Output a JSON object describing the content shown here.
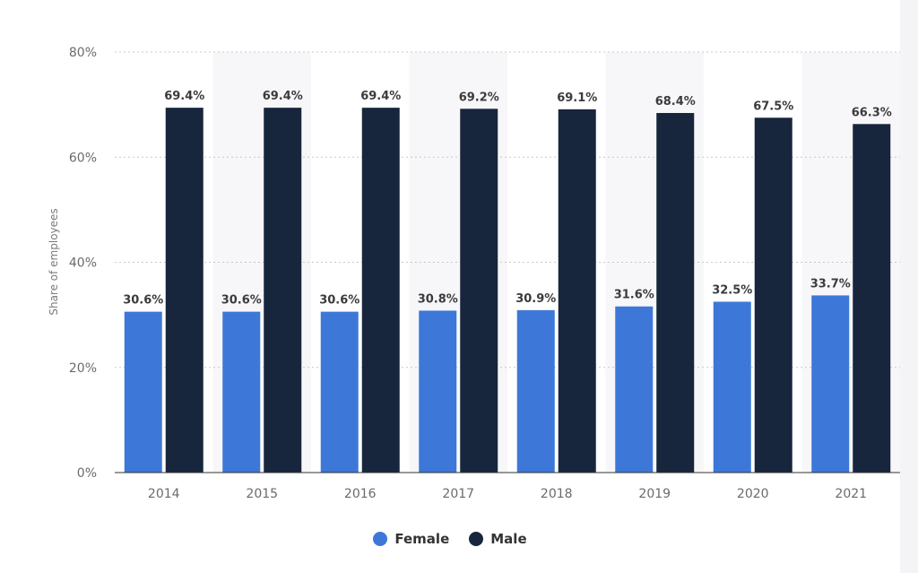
{
  "chart_data": {
    "type": "bar",
    "categories": [
      "2014",
      "2015",
      "2016",
      "2017",
      "2018",
      "2019",
      "2020",
      "2021"
    ],
    "series": [
      {
        "name": "Female",
        "color": "#3d78d8",
        "values": [
          30.6,
          30.6,
          30.6,
          30.8,
          30.9,
          31.6,
          32.5,
          33.7
        ],
        "labels": [
          "30.6%",
          "30.6%",
          "30.6%",
          "30.8%",
          "30.9%",
          "31.6%",
          "32.5%",
          "33.7%"
        ]
      },
      {
        "name": "Male",
        "color": "#17263c",
        "values": [
          69.4,
          69.4,
          69.4,
          69.2,
          69.1,
          68.4,
          67.5,
          66.3
        ],
        "labels": [
          "69.4%",
          "69.4%",
          "69.4%",
          "69.2%",
          "69.1%",
          "68.4%",
          "67.5%",
          "66.3%"
        ]
      }
    ],
    "ylabel": "Share of employees",
    "ylim": [
      0,
      80
    ],
    "yticks": [
      "0%",
      "20%",
      "40%",
      "60%",
      "80%"
    ],
    "grid": true,
    "legend": "bottom-center"
  }
}
